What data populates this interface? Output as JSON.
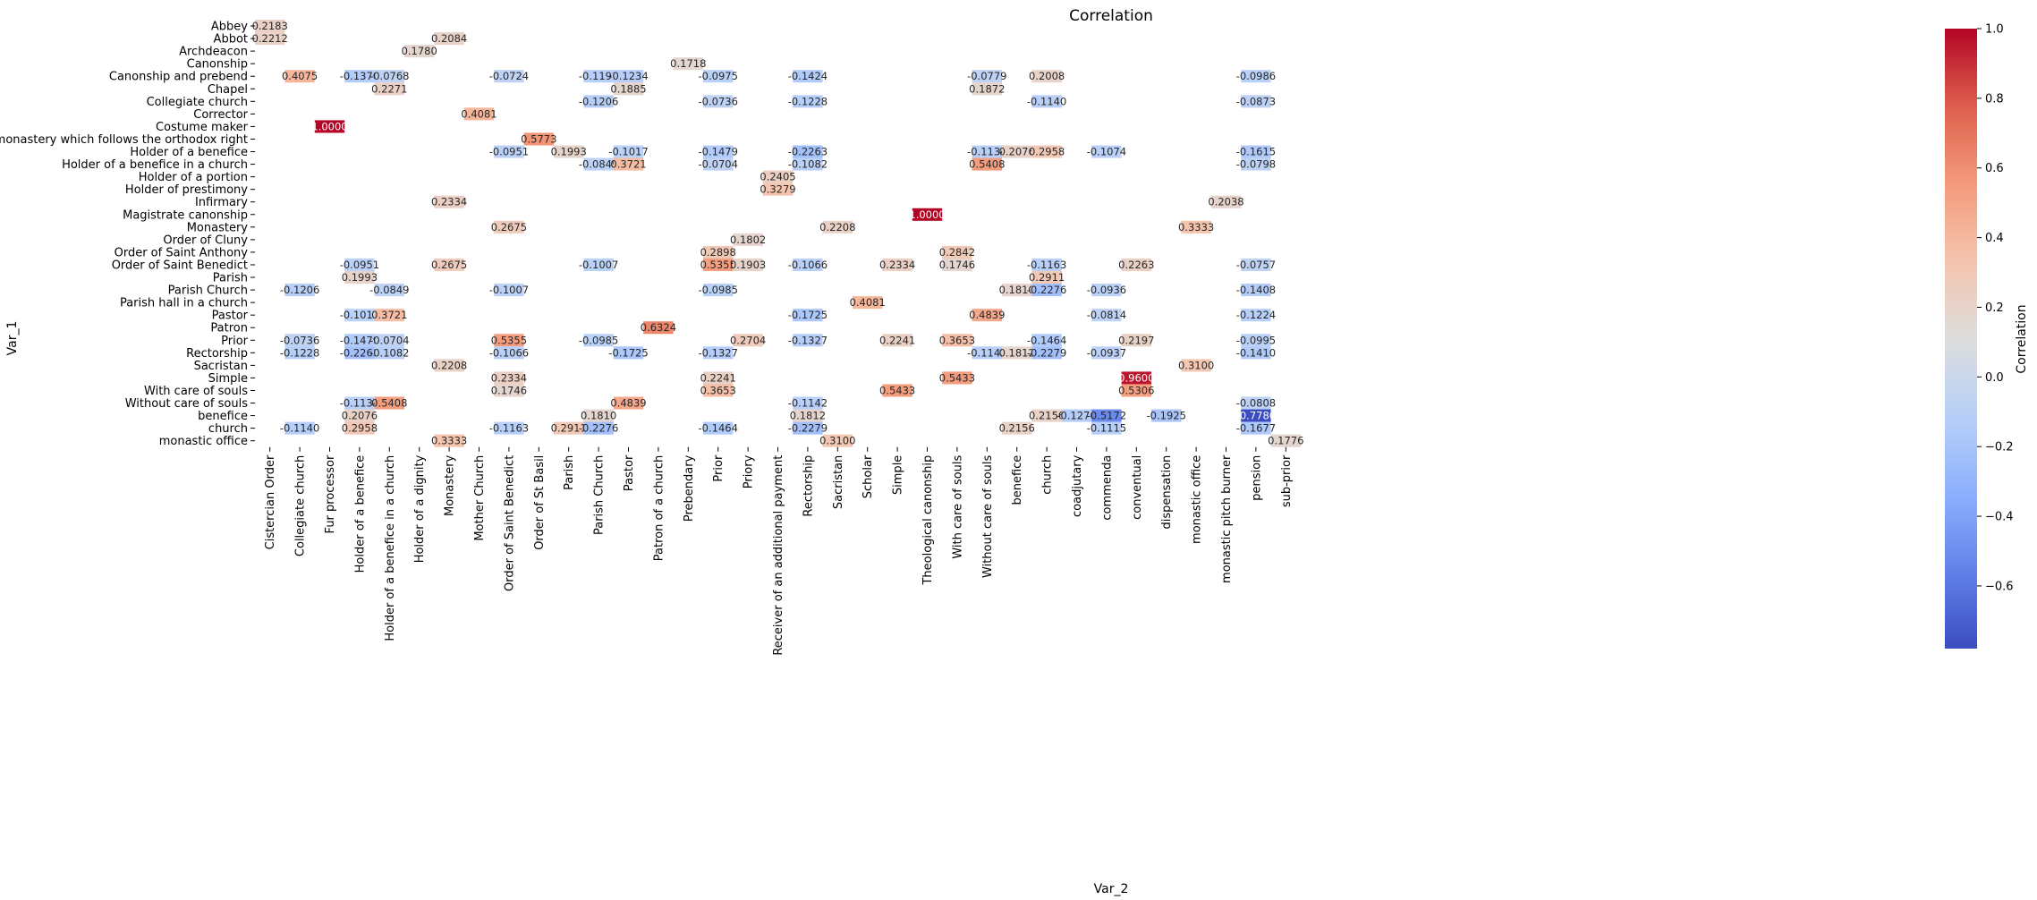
{
  "chart_data": {
    "type": "heatmap",
    "title": "Correlation",
    "xlabel": "Var_2",
    "ylabel": "Var_1",
    "colorbar_label": "Correlation",
    "colormap": "coolwarm",
    "vmin": -0.78,
    "vmax": 1.0,
    "colorbar_ticks": [
      "1.0",
      "0.8",
      "0.6",
      "0.4",
      "0.2",
      "0.0",
      "−0.2",
      "−0.4",
      "−0.6"
    ],
    "colorbar_tick_values": [
      1.0,
      0.8,
      0.6,
      0.4,
      0.2,
      0.0,
      -0.2,
      -0.4,
      -0.6
    ],
    "rows": [
      "Abbey",
      "Abbot",
      "Archdeacon",
      "Canonship",
      "Canonship and prebend",
      "Chapel",
      "Collegiate church",
      "Corrector",
      "Costume maker",
      "Head of a monastery which follows the orthodox right",
      "Holder of a benefice",
      "Holder of a benefice in a church",
      "Holder of a portion",
      "Holder of prestimony",
      "Infirmary",
      "Magistrate canonship",
      "Monastery",
      "Order of Cluny",
      "Order of Saint Anthony",
      "Order of Saint Benedict",
      "Parish",
      "Parish Church",
      "Parish hall in a church",
      "Pastor",
      "Patron",
      "Prior",
      "Rectorship",
      "Sacristan",
      "Simple",
      "With care of souls",
      "Without care of souls",
      "benefice",
      "church",
      "monastic office"
    ],
    "columns": [
      "Cistercian Order",
      "Collegiate church",
      "Fur processor",
      "Holder of a benefice",
      "Holder of a benefice in a church",
      "Holder of a dignity",
      "Monastery",
      "Mother Church",
      "Order of Saint Benedict",
      "Order of St Basil",
      "Parish",
      "Parish Church",
      "Pastor",
      "Patron of a church",
      "Prebendary",
      "Prior",
      "Priory",
      "Receiver of an additional payment",
      "Rectorship",
      "Sacristan",
      "Scholar",
      "Simple",
      "Theological canonship",
      "With care of souls",
      "Without care of souls",
      "benefice",
      "church",
      "coadjutary",
      "commenda",
      "conventual",
      "dispensation",
      "monastic office",
      "monastic pitch burner",
      "pension",
      "sub-prior"
    ],
    "cells": [
      {
        "row": 0,
        "col": 0,
        "value": 0.2183,
        "label": "0.2183"
      },
      {
        "row": 1,
        "col": 0,
        "value": 0.2212,
        "label": "0.2212"
      },
      {
        "row": 1,
        "col": 6,
        "value": 0.2084,
        "label": "0.2084"
      },
      {
        "row": 2,
        "col": 5,
        "value": 0.178,
        "label": "0.1780"
      },
      {
        "row": 3,
        "col": 14,
        "value": 0.1718,
        "label": "0.1718"
      },
      {
        "row": 4,
        "col": 1,
        "value": 0.4075,
        "label": "0.4075"
      },
      {
        "row": 4,
        "col": 3,
        "value": -0.137,
        "label": "-0.1370"
      },
      {
        "row": 4,
        "col": 4,
        "value": -0.0768,
        "label": "-0.0768"
      },
      {
        "row": 4,
        "col": 8,
        "value": -0.0724,
        "label": "-0.0724"
      },
      {
        "row": 4,
        "col": 11,
        "value": -0.1191,
        "label": "-0.1191"
      },
      {
        "row": 4,
        "col": 12,
        "value": -0.1234,
        "label": "-0.1234"
      },
      {
        "row": 4,
        "col": 15,
        "value": -0.0975,
        "label": "-0.0975"
      },
      {
        "row": 4,
        "col": 18,
        "value": -0.1424,
        "label": "-0.1424"
      },
      {
        "row": 4,
        "col": 24,
        "value": -0.0779,
        "label": "-0.0779"
      },
      {
        "row": 4,
        "col": 26,
        "value": 0.2008,
        "label": "0.2008"
      },
      {
        "row": 4,
        "col": 33,
        "value": -0.0986,
        "label": "-0.0986"
      },
      {
        "row": 5,
        "col": 4,
        "value": 0.2271,
        "label": "0.2271"
      },
      {
        "row": 5,
        "col": 12,
        "value": 0.1885,
        "label": "0.1885"
      },
      {
        "row": 5,
        "col": 24,
        "value": 0.1872,
        "label": "0.1872"
      },
      {
        "row": 6,
        "col": 11,
        "value": -0.1206,
        "label": "-0.1206"
      },
      {
        "row": 6,
        "col": 15,
        "value": -0.0736,
        "label": "-0.0736"
      },
      {
        "row": 6,
        "col": 18,
        "value": -0.1228,
        "label": "-0.1228"
      },
      {
        "row": 6,
        "col": 26,
        "value": -0.114,
        "label": "-0.1140"
      },
      {
        "row": 6,
        "col": 33,
        "value": -0.0873,
        "label": "-0.0873"
      },
      {
        "row": 7,
        "col": 7,
        "value": 0.4081,
        "label": "0.4081"
      },
      {
        "row": 8,
        "col": 2,
        "value": 1.0,
        "label": "1.0000"
      },
      {
        "row": 9,
        "col": 9,
        "value": 0.5773,
        "label": "0.5773"
      },
      {
        "row": 10,
        "col": 8,
        "value": -0.0951,
        "label": "-0.0951"
      },
      {
        "row": 10,
        "col": 10,
        "value": 0.1993,
        "label": "0.1993"
      },
      {
        "row": 10,
        "col": 12,
        "value": -0.1017,
        "label": "-0.1017"
      },
      {
        "row": 10,
        "col": 15,
        "value": -0.1479,
        "label": "-0.1479"
      },
      {
        "row": 10,
        "col": 18,
        "value": -0.2263,
        "label": "-0.2263"
      },
      {
        "row": 10,
        "col": 24,
        "value": -0.1134,
        "label": "-0.1134"
      },
      {
        "row": 10,
        "col": 25,
        "value": 0.2076,
        "label": "0.2076"
      },
      {
        "row": 10,
        "col": 26,
        "value": 0.2958,
        "label": "0.2958"
      },
      {
        "row": 10,
        "col": 28,
        "value": -0.1074,
        "label": "-0.1074"
      },
      {
        "row": 10,
        "col": 33,
        "value": -0.1615,
        "label": "-0.1615"
      },
      {
        "row": 11,
        "col": 11,
        "value": -0.0849,
        "label": "-0.0849"
      },
      {
        "row": 11,
        "col": 12,
        "value": 0.3721,
        "label": "0.3721"
      },
      {
        "row": 11,
        "col": 15,
        "value": -0.0704,
        "label": "-0.0704"
      },
      {
        "row": 11,
        "col": 18,
        "value": -0.1082,
        "label": "-0.1082"
      },
      {
        "row": 11,
        "col": 24,
        "value": 0.5408,
        "label": "0.5408"
      },
      {
        "row": 11,
        "col": 33,
        "value": -0.0798,
        "label": "-0.0798"
      },
      {
        "row": 12,
        "col": 17,
        "value": 0.2405,
        "label": "0.2405"
      },
      {
        "row": 13,
        "col": 17,
        "value": 0.3279,
        "label": "0.3279"
      },
      {
        "row": 14,
        "col": 6,
        "value": 0.2334,
        "label": "0.2334"
      },
      {
        "row": 14,
        "col": 32,
        "value": 0.2038,
        "label": "0.2038"
      },
      {
        "row": 15,
        "col": 22,
        "value": 1.0,
        "label": "1.0000"
      },
      {
        "row": 16,
        "col": 8,
        "value": 0.2675,
        "label": "0.2675"
      },
      {
        "row": 16,
        "col": 19,
        "value": 0.2208,
        "label": "0.2208"
      },
      {
        "row": 16,
        "col": 31,
        "value": 0.3333,
        "label": "0.3333"
      },
      {
        "row": 17,
        "col": 16,
        "value": 0.1802,
        "label": "0.1802"
      },
      {
        "row": 18,
        "col": 15,
        "value": 0.2898,
        "label": "0.2898"
      },
      {
        "row": 18,
        "col": 23,
        "value": 0.2842,
        "label": "0.2842"
      },
      {
        "row": 19,
        "col": 3,
        "value": -0.0951,
        "label": "-0.0951"
      },
      {
        "row": 19,
        "col": 6,
        "value": 0.2675,
        "label": "0.2675"
      },
      {
        "row": 19,
        "col": 11,
        "value": -0.1007,
        "label": "-0.1007"
      },
      {
        "row": 19,
        "col": 15,
        "value": 0.5355,
        "label": "0.5355"
      },
      {
        "row": 19,
        "col": 16,
        "value": 0.1903,
        "label": "0.1903"
      },
      {
        "row": 19,
        "col": 18,
        "value": -0.1066,
        "label": "-0.1066"
      },
      {
        "row": 19,
        "col": 21,
        "value": 0.2334,
        "label": "0.2334"
      },
      {
        "row": 19,
        "col": 23,
        "value": 0.1746,
        "label": "0.1746"
      },
      {
        "row": 19,
        "col": 26,
        "value": -0.1163,
        "label": "-0.1163"
      },
      {
        "row": 19,
        "col": 29,
        "value": 0.2263,
        "label": "0.2263"
      },
      {
        "row": 19,
        "col": 33,
        "value": -0.0757,
        "label": "-0.0757"
      },
      {
        "row": 20,
        "col": 3,
        "value": 0.1993,
        "label": "0.1993"
      },
      {
        "row": 20,
        "col": 26,
        "value": 0.2911,
        "label": "0.2911"
      },
      {
        "row": 21,
        "col": 1,
        "value": -0.1206,
        "label": "-0.1206"
      },
      {
        "row": 21,
        "col": 4,
        "value": -0.0849,
        "label": "-0.0849"
      },
      {
        "row": 21,
        "col": 8,
        "value": -0.1007,
        "label": "-0.1007"
      },
      {
        "row": 21,
        "col": 15,
        "value": -0.0985,
        "label": "-0.0985"
      },
      {
        "row": 21,
        "col": 25,
        "value": 0.181,
        "label": "0.1810"
      },
      {
        "row": 21,
        "col": 26,
        "value": -0.2276,
        "label": "-0.2276"
      },
      {
        "row": 21,
        "col": 28,
        "value": -0.0936,
        "label": "-0.0936"
      },
      {
        "row": 21,
        "col": 33,
        "value": -0.1408,
        "label": "-0.1408"
      },
      {
        "row": 22,
        "col": 20,
        "value": 0.4081,
        "label": "0.4081"
      },
      {
        "row": 23,
        "col": 3,
        "value": -0.1017,
        "label": "-0.1017"
      },
      {
        "row": 23,
        "col": 4,
        "value": 0.3721,
        "label": "0.3721"
      },
      {
        "row": 23,
        "col": 18,
        "value": -0.1725,
        "label": "-0.1725"
      },
      {
        "row": 23,
        "col": 24,
        "value": 0.4839,
        "label": "0.4839"
      },
      {
        "row": 23,
        "col": 28,
        "value": -0.0814,
        "label": "-0.0814"
      },
      {
        "row": 23,
        "col": 33,
        "value": -0.1224,
        "label": "-0.1224"
      },
      {
        "row": 24,
        "col": 13,
        "value": 0.6324,
        "label": "0.6324"
      },
      {
        "row": 25,
        "col": 1,
        "value": -0.0736,
        "label": "-0.0736"
      },
      {
        "row": 25,
        "col": 3,
        "value": -0.1479,
        "label": "-0.1479"
      },
      {
        "row": 25,
        "col": 4,
        "value": -0.0704,
        "label": "-0.0704"
      },
      {
        "row": 25,
        "col": 8,
        "value": 0.5355,
        "label": "0.5355"
      },
      {
        "row": 25,
        "col": 11,
        "value": -0.0985,
        "label": "-0.0985"
      },
      {
        "row": 25,
        "col": 16,
        "value": 0.2704,
        "label": "0.2704"
      },
      {
        "row": 25,
        "col": 18,
        "value": -0.1327,
        "label": "-0.1327"
      },
      {
        "row": 25,
        "col": 21,
        "value": 0.2241,
        "label": "0.2241"
      },
      {
        "row": 25,
        "col": 23,
        "value": 0.3653,
        "label": "0.3653"
      },
      {
        "row": 25,
        "col": 26,
        "value": -0.1464,
        "label": "-0.1464"
      },
      {
        "row": 25,
        "col": 29,
        "value": 0.2197,
        "label": "0.2197"
      },
      {
        "row": 25,
        "col": 33,
        "value": -0.0995,
        "label": "-0.0995"
      },
      {
        "row": 26,
        "col": 1,
        "value": -0.1228,
        "label": "-0.1228"
      },
      {
        "row": 26,
        "col": 3,
        "value": -0.2263,
        "label": "-0.2263"
      },
      {
        "row": 26,
        "col": 4,
        "value": -0.1082,
        "label": "-0.1082"
      },
      {
        "row": 26,
        "col": 8,
        "value": -0.1066,
        "label": "-0.1066"
      },
      {
        "row": 26,
        "col": 12,
        "value": -0.1725,
        "label": "-0.1725"
      },
      {
        "row": 26,
        "col": 15,
        "value": -0.1327,
        "label": "-0.1327"
      },
      {
        "row": 26,
        "col": 24,
        "value": -0.1142,
        "label": "-0.1142"
      },
      {
        "row": 26,
        "col": 25,
        "value": 0.1812,
        "label": "0.1812"
      },
      {
        "row": 26,
        "col": 26,
        "value": -0.2279,
        "label": "-0.2279"
      },
      {
        "row": 26,
        "col": 28,
        "value": -0.0937,
        "label": "-0.0937"
      },
      {
        "row": 26,
        "col": 33,
        "value": -0.141,
        "label": "-0.1410"
      },
      {
        "row": 27,
        "col": 6,
        "value": 0.2208,
        "label": "0.2208"
      },
      {
        "row": 27,
        "col": 31,
        "value": 0.31,
        "label": "0.3100"
      },
      {
        "row": 28,
        "col": 8,
        "value": 0.2334,
        "label": "0.2334"
      },
      {
        "row": 28,
        "col": 15,
        "value": 0.2241,
        "label": "0.2241"
      },
      {
        "row": 28,
        "col": 23,
        "value": 0.5433,
        "label": "0.5433"
      },
      {
        "row": 28,
        "col": 29,
        "value": 0.96,
        "label": "0.9600"
      },
      {
        "row": 29,
        "col": 8,
        "value": 0.1746,
        "label": "0.1746"
      },
      {
        "row": 29,
        "col": 15,
        "value": 0.3653,
        "label": "0.3653"
      },
      {
        "row": 29,
        "col": 21,
        "value": 0.5433,
        "label": "0.5433"
      },
      {
        "row": 29,
        "col": 29,
        "value": 0.5306,
        "label": "0.5306"
      },
      {
        "row": 30,
        "col": 3,
        "value": -0.1134,
        "label": "-0.1134"
      },
      {
        "row": 30,
        "col": 4,
        "value": 0.5408,
        "label": "0.5408"
      },
      {
        "row": 30,
        "col": 12,
        "value": 0.4839,
        "label": "0.4839"
      },
      {
        "row": 30,
        "col": 18,
        "value": -0.1142,
        "label": "-0.1142"
      },
      {
        "row": 30,
        "col": 33,
        "value": -0.0808,
        "label": "-0.0808"
      },
      {
        "row": 31,
        "col": 3,
        "value": 0.2076,
        "label": "0.2076"
      },
      {
        "row": 31,
        "col": 11,
        "value": 0.181,
        "label": "0.1810"
      },
      {
        "row": 31,
        "col": 18,
        "value": 0.1812,
        "label": "0.1812"
      },
      {
        "row": 31,
        "col": 26,
        "value": 0.2156,
        "label": "0.2156"
      },
      {
        "row": 31,
        "col": 27,
        "value": -0.1276,
        "label": "-0.1276"
      },
      {
        "row": 31,
        "col": 28,
        "value": -0.5172,
        "label": "-0.5172"
      },
      {
        "row": 31,
        "col": 30,
        "value": -0.1925,
        "label": "-0.1925"
      },
      {
        "row": 31,
        "col": 33,
        "value": -0.778,
        "label": "-0.7780"
      },
      {
        "row": 32,
        "col": 1,
        "value": -0.114,
        "label": "-0.1140"
      },
      {
        "row": 32,
        "col": 3,
        "value": 0.2958,
        "label": "0.2958"
      },
      {
        "row": 32,
        "col": 8,
        "value": -0.1163,
        "label": "-0.1163"
      },
      {
        "row": 32,
        "col": 10,
        "value": 0.2911,
        "label": "0.2911"
      },
      {
        "row": 32,
        "col": 11,
        "value": -0.2276,
        "label": "-0.2276"
      },
      {
        "row": 32,
        "col": 15,
        "value": -0.1464,
        "label": "-0.1464"
      },
      {
        "row": 32,
        "col": 18,
        "value": -0.2279,
        "label": "-0.2279"
      },
      {
        "row": 32,
        "col": 25,
        "value": 0.2156,
        "label": "0.2156"
      },
      {
        "row": 32,
        "col": 28,
        "value": -0.1115,
        "label": "-0.1115"
      },
      {
        "row": 32,
        "col": 33,
        "value": -0.1677,
        "label": "-0.1677"
      },
      {
        "row": 33,
        "col": 6,
        "value": 0.3333,
        "label": "0.3333"
      },
      {
        "row": 33,
        "col": 19,
        "value": 0.31,
        "label": "0.3100"
      },
      {
        "row": 33,
        "col": 34,
        "value": 0.1776,
        "label": "0.1776"
      }
    ]
  }
}
